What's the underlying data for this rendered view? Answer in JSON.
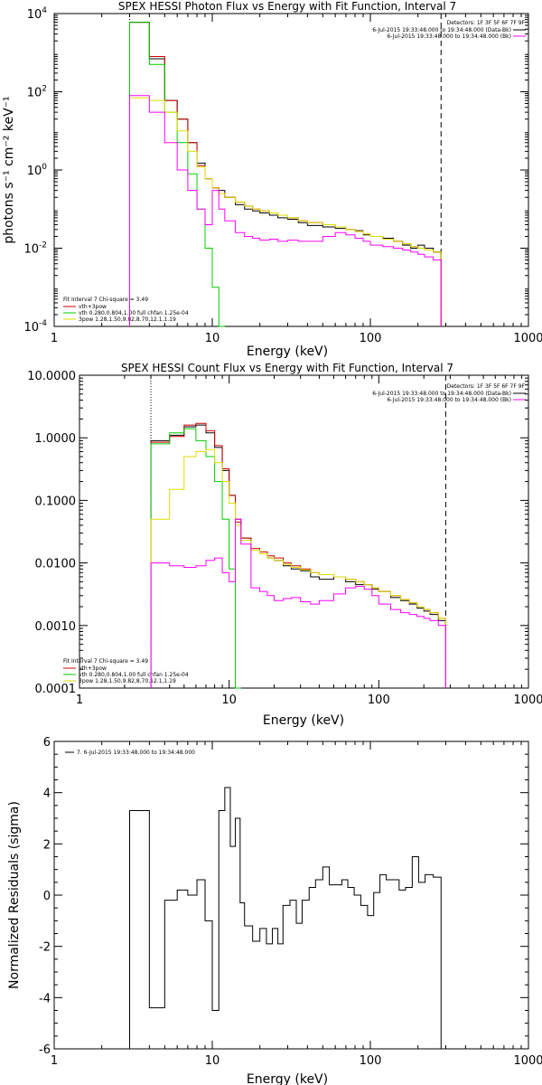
{
  "chart_data": [
    {
      "type": "line",
      "title": "SPEX HESSI Photon Flux vs Energy with Fit Function, Interval 7",
      "xlabel": "Energy (keV)",
      "ylabel": "photons s⁻¹ cm⁻² keV⁻¹",
      "xscale": "log",
      "yscale": "log",
      "xlim": [
        1,
        1000
      ],
      "ylim": [
        0.0001,
        10000
      ],
      "x_ticks": [
        "1",
        "10",
        "100",
        "1000"
      ],
      "y_ticks": [
        {
          "value": 0.0001,
          "base": "10",
          "exp": "-4"
        },
        {
          "value": 0.01,
          "base": "10",
          "exp": "-2"
        },
        {
          "value": 1,
          "base": "10",
          "exp": "0"
        },
        {
          "value": 100,
          "base": "10",
          "exp": "2"
        },
        {
          "value": 10000,
          "base": "10",
          "exp": "4"
        }
      ],
      "vlines": [
        {
          "x": 3,
          "style": "dotted",
          "color": "#000000"
        },
        {
          "x": 280,
          "style": "dashed",
          "color": "#000000"
        }
      ],
      "legend_top_right": {
        "header": "Detectors: 1F 3F 5F 6F 7F 9F",
        "entries": [
          {
            "label": "6-Jul-2015 19:33:48.000 to 19:34:48.000 (Data-Bk)",
            "color": "#000000"
          },
          {
            "label": "6-Jul-2015 19:33:48.000 to 19:34:48.000 (Bk)",
            "color": "#ff00ff"
          }
        ]
      },
      "legend_bottom_left": {
        "header": "Fit Interval  7    Chi-square = 3.49",
        "entries": [
          {
            "label": "vth+3pow",
            "color": "#cc0000"
          },
          {
            "label": "vth 0.280,0.804,1.00  full chfan 1.25e-04",
            "color": "#00cc00"
          },
          {
            "label": "3pow 1.28,1.50,9.82,8.70,12.1,1.19",
            "color": "#dddd00"
          }
        ]
      },
      "series": [
        {
          "color": "#000000",
          "x": [
            3,
            4,
            5,
            6,
            7,
            8,
            9,
            10,
            11,
            12,
            14,
            16,
            18,
            20,
            23,
            26,
            30,
            35,
            40,
            50,
            60,
            70,
            80,
            90,
            100,
            120,
            140,
            160,
            180,
            200,
            220,
            250,
            280
          ],
          "y": [
            6000,
            700,
            60,
            20,
            5,
            1.5,
            0.6,
            0.35,
            0.3,
            0.2,
            0.13,
            0.1,
            0.09,
            0.08,
            0.07,
            0.06,
            0.055,
            0.045,
            0.038,
            0.035,
            0.032,
            0.03,
            0.028,
            0.022,
            0.02,
            0.018,
            0.015,
            0.012,
            0.01,
            0.012,
            0.01,
            0.008,
            0.006
          ]
        },
        {
          "color": "#cc0000",
          "x": [
            3,
            4,
            5,
            6,
            7,
            8,
            9,
            10,
            11,
            12,
            14,
            16,
            18,
            20,
            23,
            26,
            30,
            35,
            40,
            50,
            60,
            70,
            80,
            90,
            100,
            120,
            140,
            160,
            180,
            200,
            220,
            250,
            280
          ],
          "y": [
            6000,
            800,
            60,
            20,
            5,
            1.3,
            0.6,
            0.35,
            0.25,
            0.2,
            0.15,
            0.12,
            0.1,
            0.09,
            0.08,
            0.07,
            0.06,
            0.05,
            0.045,
            0.04,
            0.035,
            0.03,
            0.027,
            0.023,
            0.02,
            0.017,
            0.015,
            0.013,
            0.011,
            0.01,
            0.009,
            0.008,
            0.007
          ]
        },
        {
          "color": "#00cc00",
          "x": [
            3,
            4,
            5,
            6,
            7,
            8,
            9,
            10,
            11,
            12
          ],
          "y": [
            6000,
            500,
            30,
            5,
            0.8,
            0.1,
            0.01,
            0.001,
            0.0001,
            0.0001
          ]
        },
        {
          "color": "#dddd00",
          "x": [
            3,
            4,
            5,
            6,
            7,
            8,
            9,
            10,
            11,
            12,
            14,
            16,
            18,
            20,
            23,
            26,
            30,
            35,
            40,
            50,
            60,
            70,
            80,
            90,
            100,
            120,
            140,
            160,
            180,
            200,
            220,
            250,
            280
          ],
          "y": [
            70,
            60,
            30,
            10,
            3,
            1.2,
            0.6,
            0.35,
            0.25,
            0.2,
            0.15,
            0.12,
            0.1,
            0.09,
            0.08,
            0.07,
            0.06,
            0.05,
            0.045,
            0.04,
            0.035,
            0.03,
            0.027,
            0.023,
            0.02,
            0.017,
            0.015,
            0.013,
            0.011,
            0.01,
            0.009,
            0.008,
            0.007
          ]
        },
        {
          "color": "#ff00ff",
          "x": [
            3,
            4,
            5,
            6,
            7,
            8,
            9,
            10,
            11,
            12,
            14,
            16,
            18,
            20,
            23,
            26,
            30,
            35,
            40,
            50,
            60,
            70,
            80,
            90,
            100,
            120,
            140,
            160,
            180,
            200,
            220,
            250,
            280
          ],
          "y": [
            80,
            30,
            5,
            1,
            0.3,
            0.1,
            0.04,
            0.3,
            0.1,
            0.05,
            0.025,
            0.02,
            0.018,
            0.016,
            0.017,
            0.015,
            0.016,
            0.015,
            0.015,
            0.02,
            0.025,
            0.022,
            0.018,
            0.015,
            0.012,
            0.011,
            0.01,
            0.009,
            0.008,
            0.007,
            0.006,
            0.005,
            0.004
          ]
        }
      ]
    },
    {
      "type": "line",
      "title": "SPEX HESSI Count Flux vs Energy with Fit Function, Interval 7",
      "xlabel": "Energy (keV)",
      "ylabel": "",
      "xscale": "log",
      "yscale": "log",
      "xlim": [
        1,
        1000
      ],
      "ylim": [
        0.0001,
        10
      ],
      "x_ticks": [
        "1",
        "10",
        "100",
        "1000"
      ],
      "y_ticks": [
        {
          "value": 0.0001,
          "label": "0.0001"
        },
        {
          "value": 0.001,
          "label": "0.0010"
        },
        {
          "value": 0.01,
          "label": "0.0100"
        },
        {
          "value": 0.1,
          "label": "0.1000"
        },
        {
          "value": 1,
          "label": "1.0000"
        },
        {
          "value": 10,
          "label": "10.0000"
        }
      ],
      "vlines": [
        {
          "x": 3,
          "style": "dotted",
          "color": "#000000"
        },
        {
          "x": 280,
          "style": "dashed",
          "color": "#000000"
        }
      ],
      "legend_top_right": {
        "header": "Detectors: 1F 3F 5F 6F 7F 9F",
        "entries": [
          {
            "label": "6-Jul-2015 19:33:48.000 to 19:34:48.000 (Data-Bk)",
            "color": "#000000"
          },
          {
            "label": "6-Jul-2015 19:33:48.000 to 19:34:48.000 (Bk)",
            "color": "#ff00ff"
          }
        ]
      },
      "legend_bottom_left": {
        "header": "Fit Interval  7    Chi-square = 3.49",
        "entries": [
          {
            "label": "vth+3pow",
            "color": "#cc0000"
          },
          {
            "label": "vth 0.280,0.804,1.00  full chfan 1.25e-04",
            "color": "#00cc00"
          },
          {
            "label": "3pow 1.28,1.50,9.82,8.70,12.1,1.19",
            "color": "#dddd00"
          }
        ]
      },
      "series": [
        {
          "color": "#000000",
          "x": [
            3,
            4,
            5,
            6,
            7,
            8,
            9,
            10,
            11,
            12,
            14,
            16,
            18,
            20,
            23,
            26,
            30,
            35,
            40,
            50,
            60,
            70,
            80,
            90,
            100,
            120,
            140,
            160,
            180,
            200,
            220,
            250,
            280
          ],
          "y": [
            0.9,
            1.1,
            1.5,
            1.6,
            1.2,
            0.7,
            0.3,
            0.12,
            0.05,
            0.025,
            0.016,
            0.014,
            0.012,
            0.011,
            0.009,
            0.008,
            0.0075,
            0.006,
            0.0055,
            0.006,
            0.005,
            0.0045,
            0.0045,
            0.0038,
            0.0035,
            0.0028,
            0.0025,
            0.0022,
            0.0019,
            0.0017,
            0.0015,
            0.0012,
            0.0009
          ]
        },
        {
          "color": "#cc0000",
          "x": [
            3,
            4,
            5,
            6,
            7,
            8,
            9,
            10,
            11,
            12,
            14,
            16,
            18,
            20,
            23,
            26,
            30,
            35,
            40,
            50,
            60,
            70,
            80,
            90,
            100,
            120,
            140,
            160,
            180,
            200,
            220,
            250,
            280
          ],
          "y": [
            0.85,
            1.05,
            1.6,
            1.7,
            1.3,
            0.75,
            0.32,
            0.12,
            0.045,
            0.025,
            0.017,
            0.015,
            0.013,
            0.012,
            0.01,
            0.009,
            0.008,
            0.007,
            0.0065,
            0.006,
            0.0055,
            0.005,
            0.0045,
            0.004,
            0.0035,
            0.003,
            0.0026,
            0.0023,
            0.002,
            0.0018,
            0.0016,
            0.0013,
            0.001
          ]
        },
        {
          "color": "#00cc00",
          "x": [
            3,
            4,
            5,
            6,
            7,
            8,
            9,
            10,
            11,
            12
          ],
          "y": [
            0.8,
            1.2,
            1.4,
            0.9,
            0.5,
            0.2,
            0.05,
            0.008,
            0.0001,
            0.0001
          ]
        },
        {
          "color": "#dddd00",
          "x": [
            3,
            4,
            5,
            6,
            7,
            8,
            9,
            10,
            11,
            12,
            14,
            16,
            18,
            20,
            23,
            26,
            30,
            35,
            40,
            50,
            60,
            70,
            80,
            90,
            100,
            120,
            140,
            160,
            180,
            200,
            220,
            250,
            280
          ],
          "y": [
            0.05,
            0.15,
            0.5,
            0.6,
            0.65,
            0.4,
            0.2,
            0.09,
            0.04,
            0.023,
            0.016,
            0.014,
            0.012,
            0.011,
            0.0095,
            0.0085,
            0.0078,
            0.007,
            0.0065,
            0.006,
            0.0055,
            0.005,
            0.0045,
            0.004,
            0.0035,
            0.003,
            0.0026,
            0.0023,
            0.002,
            0.0018,
            0.0016,
            0.0013,
            0.001
          ]
        },
        {
          "color": "#ff00ff",
          "x": [
            3,
            4,
            5,
            6,
            7,
            8,
            9,
            10,
            11,
            12,
            14,
            16,
            18,
            20,
            23,
            26,
            30,
            35,
            40,
            50,
            60,
            70,
            80,
            90,
            100,
            120,
            140,
            160,
            180,
            200,
            220,
            250,
            280
          ],
          "y": [
            0.01,
            0.009,
            0.0085,
            0.009,
            0.011,
            0.012,
            0.007,
            0.005,
            0.05,
            0.02,
            0.004,
            0.0035,
            0.003,
            0.0025,
            0.0027,
            0.0028,
            0.0024,
            0.0022,
            0.0025,
            0.0032,
            0.004,
            0.0042,
            0.0038,
            0.003,
            0.0022,
            0.0018,
            0.0016,
            0.0015,
            0.0014,
            0.0013,
            0.0012,
            0.001,
            0.0008
          ]
        }
      ]
    },
    {
      "type": "line",
      "title": "",
      "xlabel": "Energy (keV)",
      "ylabel": "Normalized Residuals (sigma)",
      "xscale": "log",
      "yscale": "linear",
      "xlim": [
        1,
        1000
      ],
      "ylim": [
        -6,
        6
      ],
      "x_ticks": [
        "1",
        "10",
        "100",
        "1000"
      ],
      "y_ticks": [
        {
          "value": -6,
          "label": "-6"
        },
        {
          "value": -4,
          "label": "-4"
        },
        {
          "value": -2,
          "label": "-2"
        },
        {
          "value": 0,
          "label": "0"
        },
        {
          "value": 2,
          "label": "2"
        },
        {
          "value": 4,
          "label": "4"
        },
        {
          "value": 6,
          "label": "6"
        }
      ],
      "legend_top_left": {
        "entries": [
          {
            "label": "7.  6-Jul-2015 19:33:48.000 to 19:34:48.000",
            "color": "#000000"
          }
        ]
      },
      "series": [
        {
          "color": "#000000",
          "x": [
            3,
            4,
            5,
            6,
            7,
            8,
            9,
            10,
            11,
            12,
            13,
            14,
            15,
            16,
            18,
            20,
            22,
            24,
            26,
            28,
            31,
            34,
            37,
            41,
            45,
            50,
            55,
            60,
            66,
            72,
            79,
            87,
            96,
            105,
            115,
            126,
            138,
            152,
            167,
            184,
            202,
            222,
            250,
            280
          ],
          "y": [
            3.3,
            -4.4,
            -0.2,
            0.2,
            0.0,
            0.6,
            -1.0,
            -4.5,
            3.3,
            4.2,
            1.9,
            3.0,
            -0.3,
            -1.2,
            -1.8,
            -1.3,
            -1.9,
            -1.3,
            -1.9,
            -0.4,
            -0.2,
            -1.1,
            -0.2,
            0.3,
            0.6,
            1.1,
            0.4,
            0.4,
            0.6,
            0.3,
            0.0,
            -0.4,
            -0.8,
            0.1,
            0.8,
            0.6,
            0.6,
            0.2,
            0.3,
            1.5,
            0.5,
            0.8,
            0.7,
            0.7
          ]
        }
      ]
    }
  ]
}
